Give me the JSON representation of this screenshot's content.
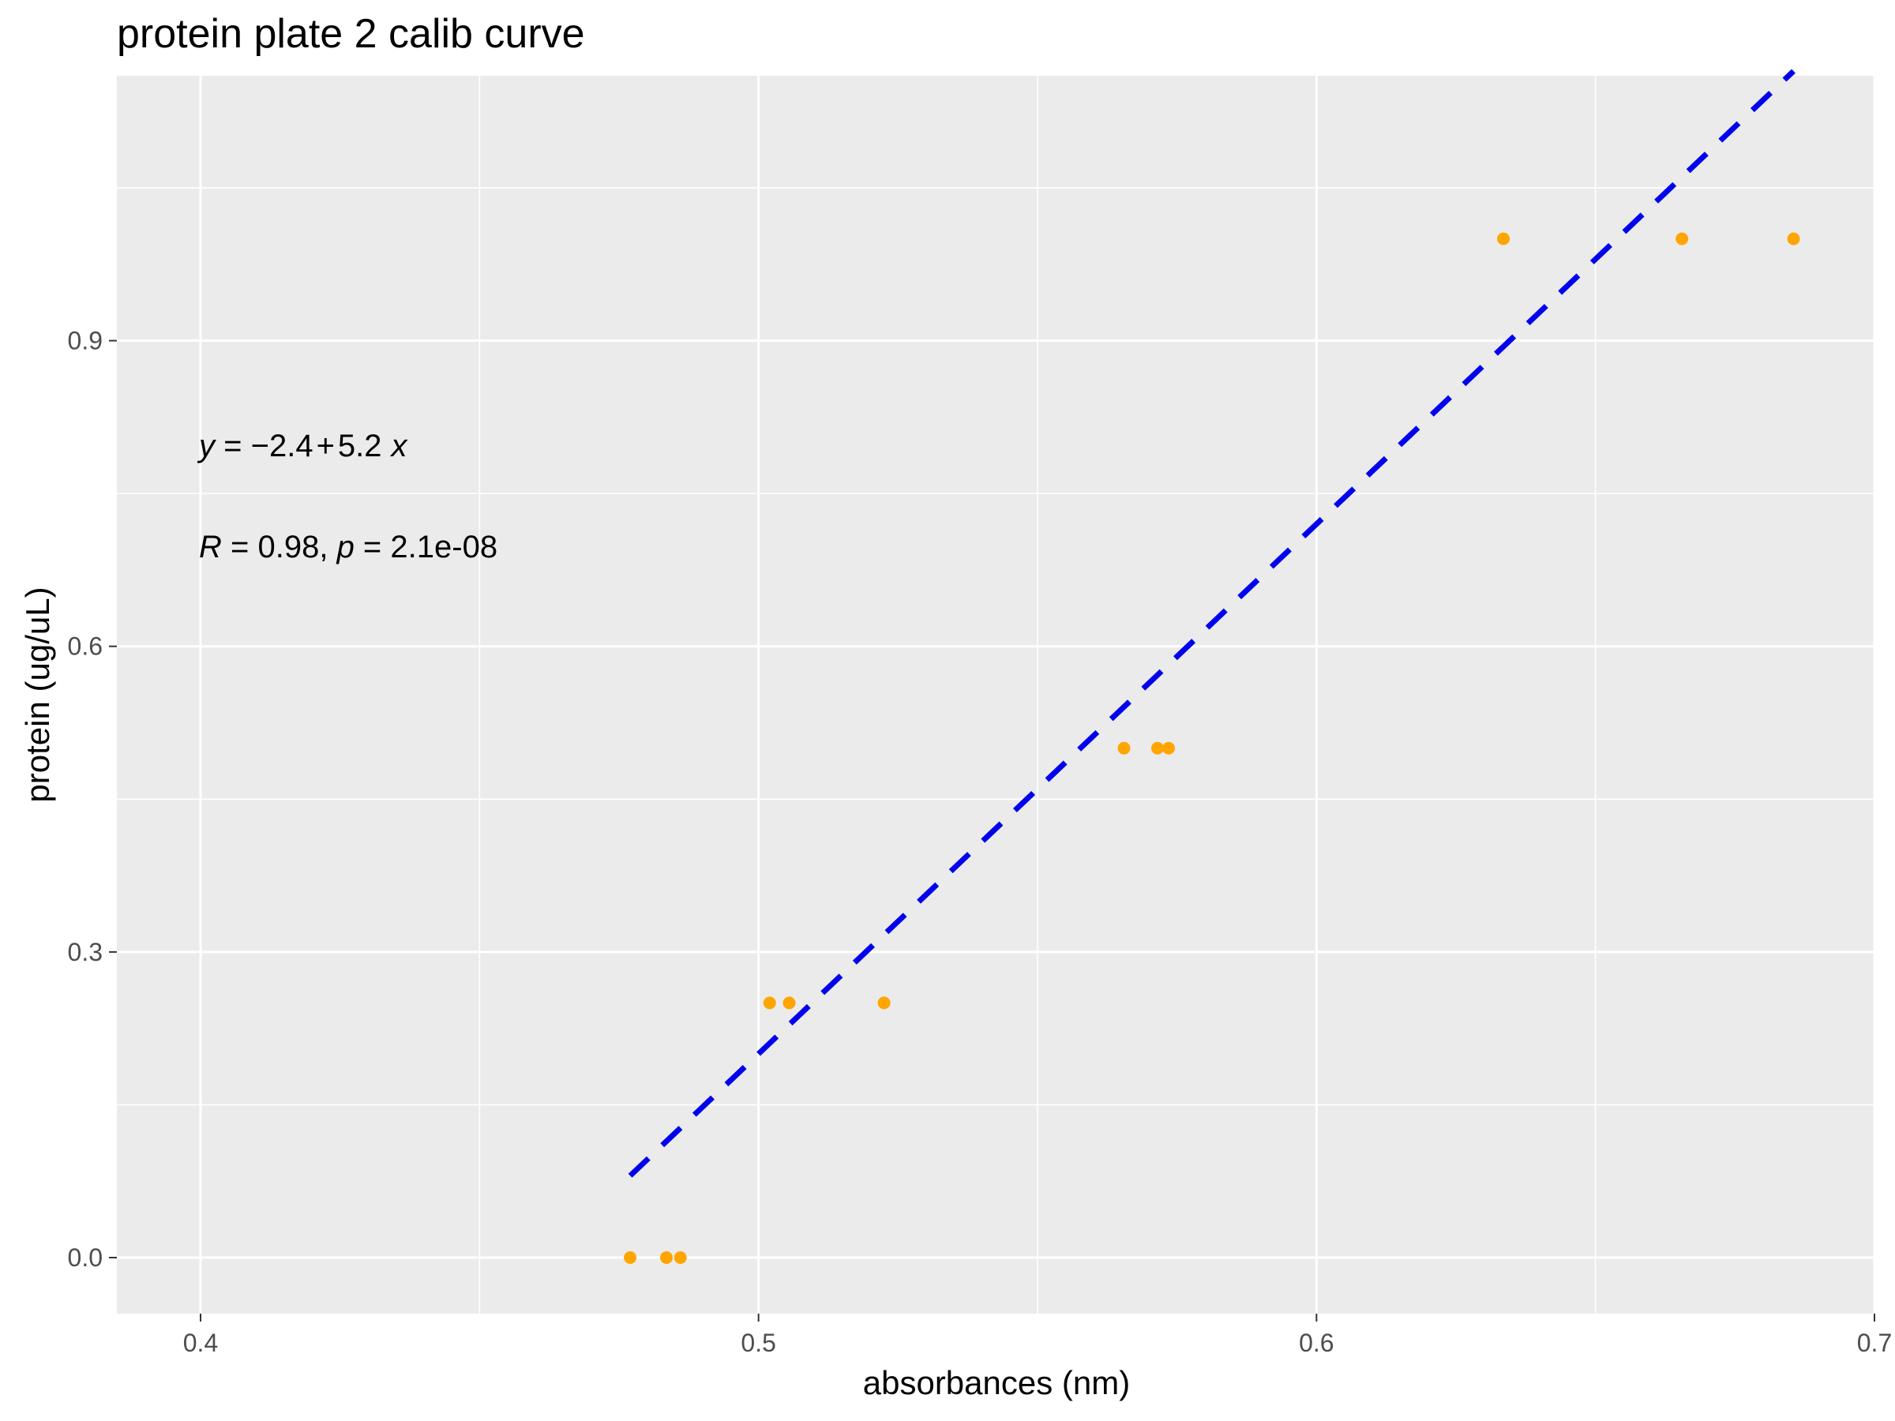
{
  "chart_data": {
    "type": "scatter",
    "title": "protein plate 2 calib curve",
    "xlabel": "absorbances (nm)",
    "ylabel": "protein (ug/uL)",
    "xlim": [
      0.385,
      0.7
    ],
    "ylim": [
      -0.055,
      1.16
    ],
    "x_ticks": [
      0.4,
      0.5,
      0.6,
      0.7
    ],
    "y_ticks": [
      0.0,
      0.3,
      0.6,
      0.9
    ],
    "x_tick_labels": [
      "0.4",
      "0.5",
      "0.6",
      "0.7"
    ],
    "y_tick_labels": [
      "0.0",
      "0.3",
      "0.6",
      "0.9"
    ],
    "grid": true,
    "background_color": "#EBEBEB",
    "grid_color": "#FFFFFF",
    "point_color": "#FFA500",
    "line_color": "#0000EE",
    "points": [
      {
        "x": 0.477,
        "y": 0.0
      },
      {
        "x": 0.4835,
        "y": 0.0
      },
      {
        "x": 0.486,
        "y": 0.0
      },
      {
        "x": 0.502,
        "y": 0.25
      },
      {
        "x": 0.5055,
        "y": 0.25
      },
      {
        "x": 0.5225,
        "y": 0.25
      },
      {
        "x": 0.5655,
        "y": 0.5
      },
      {
        "x": 0.5715,
        "y": 0.5
      },
      {
        "x": 0.5735,
        "y": 0.5
      },
      {
        "x": 0.6335,
        "y": 1.0
      },
      {
        "x": 0.6655,
        "y": 1.0
      },
      {
        "x": 0.6855,
        "y": 1.0
      }
    ],
    "fit_line": {
      "style": "dashed",
      "x_range": [
        0.477,
        0.6855
      ],
      "intercept": -2.4,
      "slope": 5.2
    },
    "annotations": {
      "equation": {
        "y_var": "y",
        "eq_sign": " = ",
        "intercept": "−2.4",
        "plus": "+",
        "slope": "5.2",
        "x_var": "x"
      },
      "stats": {
        "r_var": "R",
        "r_text": " = 0.98, ",
        "p_var": "p",
        "p_text": " = 2.1e-08"
      }
    }
  }
}
